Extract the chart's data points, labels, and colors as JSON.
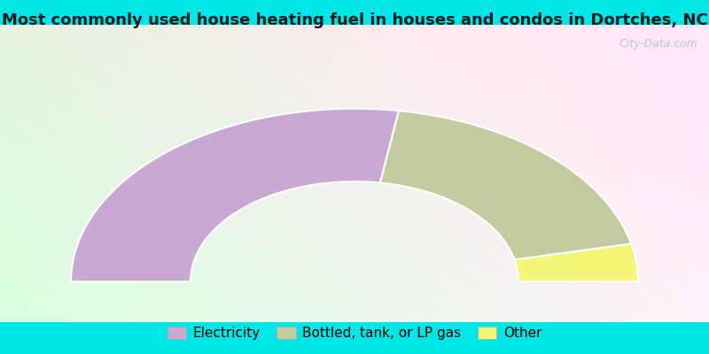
{
  "title": "Most commonly used house heating fuel in houses and condos in Dortches, NC",
  "categories": [
    "Electricity",
    "Bottled, tank, or LP gas",
    "Other"
  ],
  "values": [
    55.0,
    38.0,
    7.0
  ],
  "colors": [
    "#c9a8d4",
    "#c2cc9e",
    "#f5f577"
  ],
  "legend_colors": [
    "#c9a8d4",
    "#c2cc9e",
    "#f5f577"
  ],
  "background_color": "#00e5e5",
  "title_fontsize": 13,
  "legend_fontsize": 11,
  "watermark": "City-Data.com"
}
